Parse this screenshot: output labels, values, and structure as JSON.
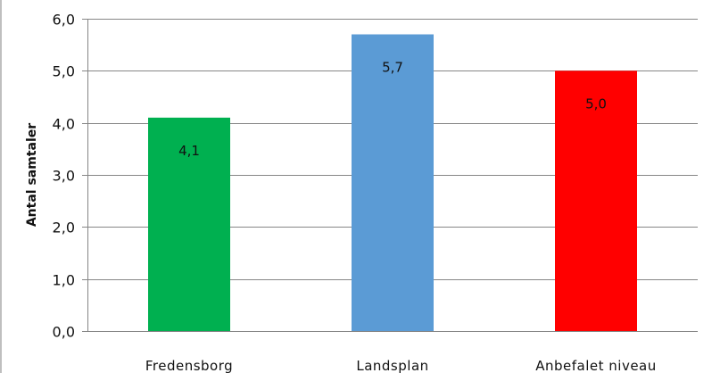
{
  "chart_data": {
    "type": "bar",
    "title": "",
    "xlabel": "",
    "ylabel": "Antal samtaler",
    "categories": [
      "Fredensborg",
      "Landsplan",
      "Anbefalet niveau"
    ],
    "values": [
      4.1,
      5.7,
      5.0
    ],
    "value_labels": [
      "4,1",
      "5,7",
      "5,0"
    ],
    "colors": [
      "#00b050",
      "#5b9bd5",
      "#ff0000"
    ],
    "ylim": [
      0,
      6
    ],
    "yticks": [
      0,
      1,
      2,
      3,
      4,
      5,
      6
    ],
    "ytick_labels": [
      "0,0",
      "1,0",
      "2,0",
      "3,0",
      "4,0",
      "5,0",
      "6,0"
    ],
    "grid": true,
    "legend": "none"
  }
}
